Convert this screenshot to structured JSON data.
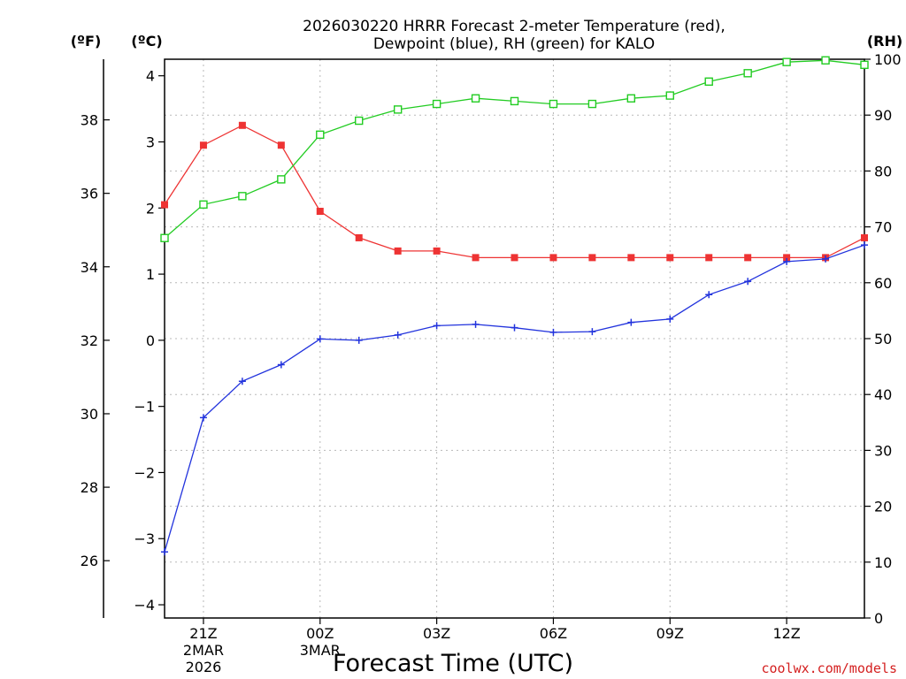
{
  "chart_data": {
    "type": "line",
    "title_line1": "2026030220 HRRR Forecast 2-meter Temperature (red),",
    "title_line2": "Dewpoint (blue), RH (green) for KALO",
    "xlabel": "Forecast Time (UTC)",
    "credit": "coolwx.com/models",
    "units": {
      "fahrenheit": "(ºF)",
      "celsius": "(ºC)",
      "rh": "(RH)"
    },
    "x_hours": [
      20,
      21,
      22,
      23,
      24,
      25,
      26,
      27,
      28,
      29,
      30,
      31,
      32,
      33,
      34,
      35,
      36,
      37,
      38
    ],
    "x_ticks": [
      {
        "hour": 21,
        "label": "21Z",
        "sub1": "2MAR",
        "sub2": "2026"
      },
      {
        "hour": 24,
        "label": "00Z",
        "sub1": "3MAR",
        "sub2": ""
      },
      {
        "hour": 27,
        "label": "03Z",
        "sub1": "",
        "sub2": ""
      },
      {
        "hour": 30,
        "label": "06Z",
        "sub1": "",
        "sub2": ""
      },
      {
        "hour": 33,
        "label": "09Z",
        "sub1": "",
        "sub2": ""
      },
      {
        "hour": 36,
        "label": "12Z",
        "sub1": "",
        "sub2": ""
      }
    ],
    "x_range": [
      20,
      38
    ],
    "celsius_range": [
      -4.2,
      4.25
    ],
    "celsius_ticks": [
      -4,
      -3,
      -2,
      -1,
      0,
      1,
      2,
      3,
      4
    ],
    "celsius_tick_labels": [
      "−4",
      "−3",
      "−2",
      "−1",
      "0",
      "1",
      "2",
      "3",
      "4"
    ],
    "fahrenheit_ticks": [
      26,
      28,
      30,
      32,
      34,
      36,
      38
    ],
    "fahrenheit_tick_labels": [
      "26",
      "28",
      "30",
      "32",
      "34",
      "36",
      "38"
    ],
    "rh_range": [
      0,
      100
    ],
    "rh_ticks": [
      0,
      10,
      20,
      30,
      40,
      50,
      60,
      70,
      80,
      90,
      100
    ],
    "rh_tick_labels": [
      "0",
      "10",
      "20",
      "30",
      "40",
      "50",
      "60",
      "70",
      "80",
      "90",
      "100"
    ],
    "series": [
      {
        "name": "Temperature",
        "axis": "celsius",
        "color": "#ee3333",
        "marker": "filled-square",
        "values": [
          2.05,
          2.95,
          3.25,
          2.95,
          1.95,
          1.55,
          1.35,
          1.35,
          1.25,
          1.25,
          1.25,
          1.25,
          1.25,
          1.25,
          1.25,
          1.25,
          1.25,
          1.25,
          1.55
        ]
      },
      {
        "name": "Dewpoint",
        "axis": "celsius",
        "color": "#2233dd",
        "marker": "plus",
        "values": [
          -3.2,
          -1.17,
          -0.62,
          -0.37,
          0.02,
          0.0,
          0.08,
          0.22,
          0.24,
          0.19,
          0.12,
          0.13,
          0.27,
          0.32,
          0.69,
          0.89,
          1.19,
          1.23,
          1.44
        ]
      },
      {
        "name": "RH",
        "axis": "rh",
        "color": "#22cc22",
        "marker": "open-square",
        "values": [
          68,
          74,
          75.5,
          78.5,
          86.5,
          89,
          91,
          92,
          93,
          92.5,
          92,
          92,
          93,
          93.5,
          96,
          97.5,
          99.5,
          99.8,
          99
        ]
      }
    ]
  }
}
